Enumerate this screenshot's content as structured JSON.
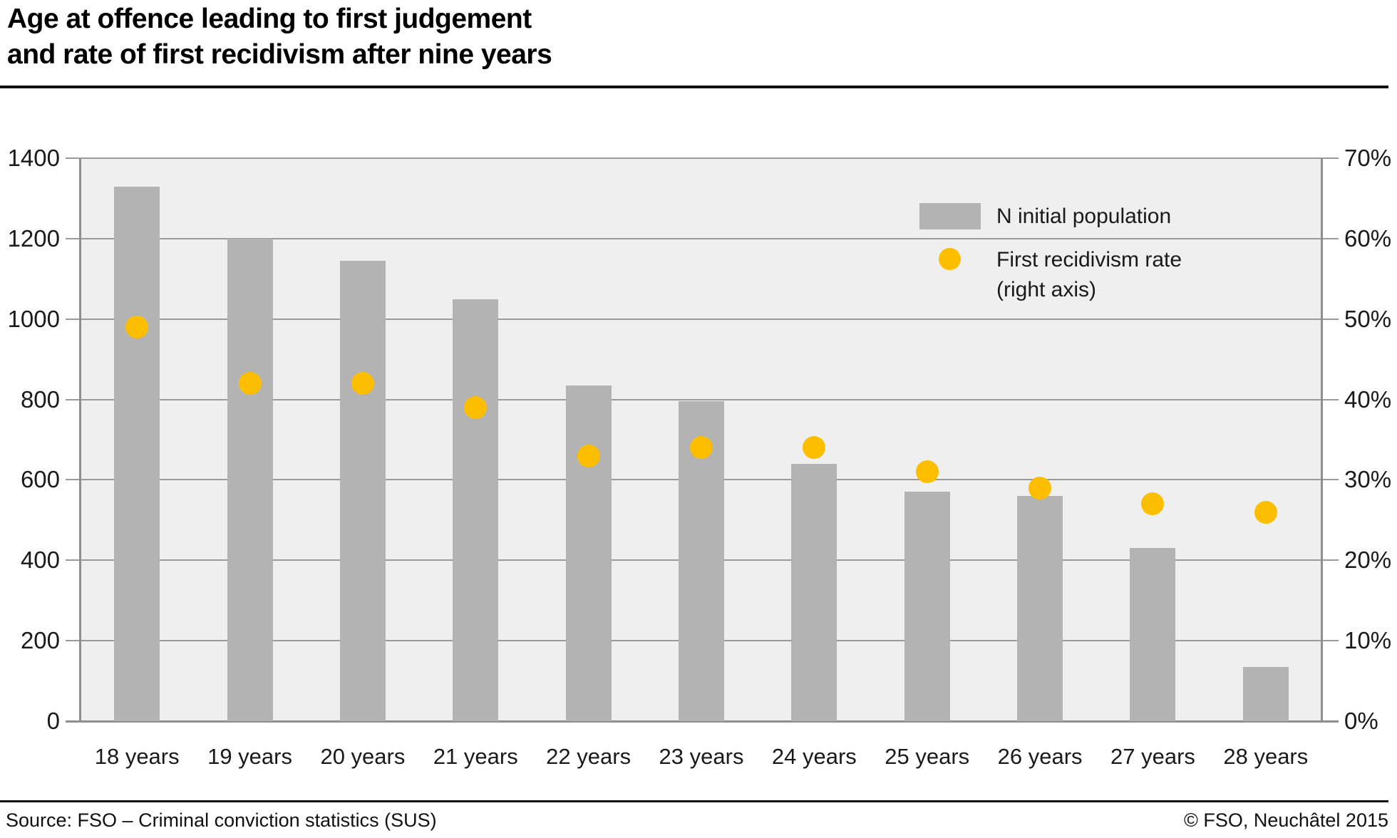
{
  "title": {
    "line1": "Age at offence leading to first judgement",
    "line2": "and rate of first recidivism after nine years"
  },
  "legend": {
    "bars_label": "N initial population",
    "dots_label_line1": "First recidivism rate",
    "dots_label_line2": "(right axis)"
  },
  "footer": {
    "source": "Source: FSO – Criminal conviction statistics (SUS)",
    "copyright": "© FSO, Neuchâtel 2015"
  },
  "colors": {
    "bar": "#b3b3b3",
    "dot": "#fdbe00",
    "plot_bg": "#efefef",
    "gridline": "#9a9a9a",
    "axis_line": "#8f8f8f",
    "text": "#1a1a1a"
  },
  "chart_data": {
    "type": "bar",
    "subtype": "bar+scatter dual-axis",
    "title": "Age at offence leading to first judgement and rate of first recidivism after nine years",
    "categories": [
      "18 years",
      "19 years",
      "20 years",
      "21 years",
      "22 years",
      "23 years",
      "24 years",
      "25 years",
      "26 years",
      "27 years",
      "28 years"
    ],
    "series": [
      {
        "name": "N initial population",
        "type": "bar",
        "axis": "left",
        "values": [
          1330,
          1200,
          1145,
          1050,
          835,
          795,
          640,
          570,
          560,
          430,
          135
        ]
      },
      {
        "name": "First recidivism rate (right axis)",
        "type": "scatter",
        "axis": "right",
        "values_percent": [
          49,
          42,
          42,
          39,
          33,
          34,
          34,
          31,
          29,
          27,
          26
        ]
      }
    ],
    "left_axis": {
      "min": 0,
      "max": 1400,
      "ticks": [
        0,
        200,
        400,
        600,
        800,
        1000,
        1200,
        1400
      ]
    },
    "right_axis": {
      "min": 0,
      "max": 70,
      "ticks": [
        "0%",
        "10%",
        "20%",
        "30%",
        "40%",
        "50%",
        "60%",
        "70%"
      ]
    },
    "grid": true,
    "legend_position": "top-right-inside"
  }
}
